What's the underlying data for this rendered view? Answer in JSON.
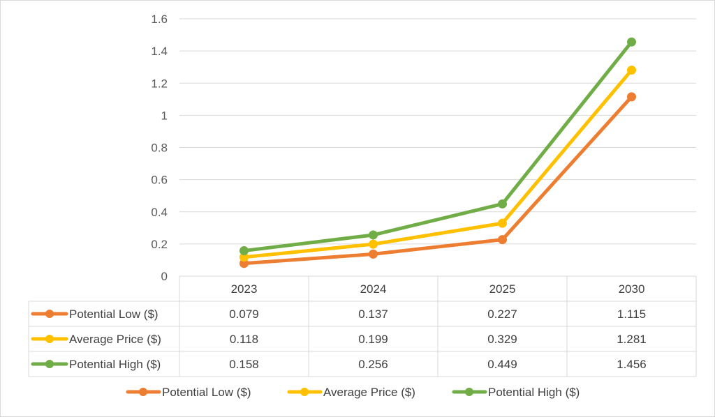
{
  "chart_data": {
    "type": "line",
    "title": "",
    "xlabel": "",
    "ylabel": "",
    "categories": [
      "2023",
      "2024",
      "2025",
      "2030"
    ],
    "ylim": [
      0,
      1.6
    ],
    "yticks": [
      0,
      0.2,
      0.4,
      0.6,
      0.8,
      1,
      1.2,
      1.4,
      1.6
    ],
    "grid": true,
    "legend": "bottom",
    "data_table": true,
    "series": [
      {
        "name": "Potential Low ($)",
        "color": "#ED7D31",
        "values": [
          0.079,
          0.137,
          0.227,
          1.115
        ],
        "labels": [
          "0.079",
          "0.137",
          "0.227",
          "1.115"
        ]
      },
      {
        "name": "Average Price ($)",
        "color": "#FFC000",
        "values": [
          0.118,
          0.199,
          0.329,
          1.281
        ],
        "labels": [
          "0.118",
          "0.199",
          "0.329",
          "1.281"
        ]
      },
      {
        "name": "Potential High ($)",
        "color": "#70AD47",
        "values": [
          0.158,
          0.256,
          0.449,
          1.456
        ],
        "labels": [
          "0.158",
          "0.256",
          "0.449",
          "1.456"
        ]
      }
    ]
  }
}
